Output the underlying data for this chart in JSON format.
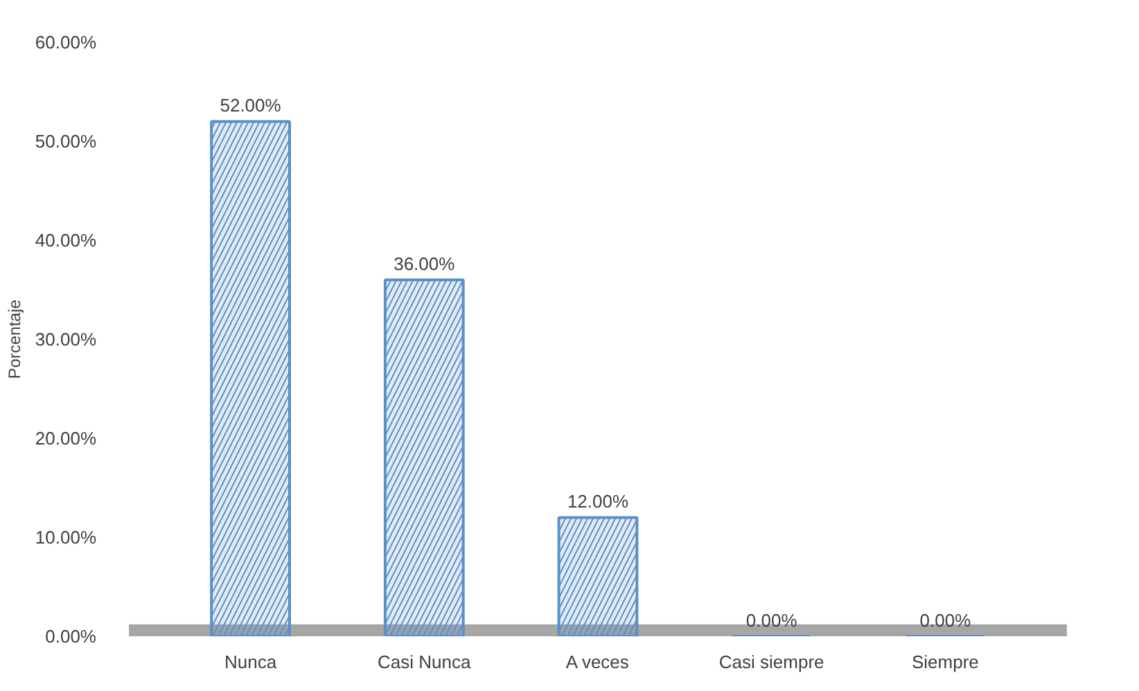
{
  "chart_data": {
    "type": "bar",
    "ylabel": "Porcentaje",
    "categories": [
      "Nunca",
      "Casi Nunca",
      "A veces",
      "Casi siempre",
      "Siempre"
    ],
    "values": [
      52,
      36,
      12,
      0,
      0
    ],
    "value_labels": [
      "52.00%",
      "36.00%",
      "12.00%",
      "0.00%",
      "0.00%"
    ],
    "color": "#5b8fc7",
    "ylim": [
      0,
      60
    ],
    "yticks": [
      {
        "value": 0,
        "label": "0.00%"
      },
      {
        "value": 10,
        "label": "10.00%"
      },
      {
        "value": 20,
        "label": "20.00%"
      },
      {
        "value": 30,
        "label": "30.00%"
      },
      {
        "value": 40,
        "label": "40.00%"
      },
      {
        "value": 50,
        "label": "50.00%"
      },
      {
        "value": 60,
        "label": "60.00%"
      }
    ],
    "bands": [
      {
        "axis": "y",
        "from": 0,
        "to": 1.2,
        "color": "#a6a6a6"
      }
    ],
    "grid": false
  }
}
